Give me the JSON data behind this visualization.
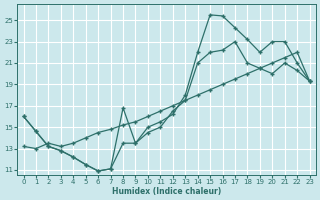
{
  "xlabel": "Humidex (Indice chaleur)",
  "bg_color": "#cce8ec",
  "grid_color": "#ffffff",
  "line_color": "#2e706a",
  "xlim": [
    -0.5,
    23.5
  ],
  "ylim": [
    10.5,
    26.5
  ],
  "xticks": [
    0,
    1,
    2,
    3,
    4,
    5,
    6,
    7,
    8,
    9,
    10,
    11,
    12,
    13,
    14,
    15,
    16,
    17,
    18,
    19,
    20,
    21,
    22,
    23
  ],
  "yticks": [
    11,
    13,
    15,
    17,
    19,
    21,
    23,
    25
  ],
  "curve_jagged_x": [
    0,
    1,
    2,
    3,
    4,
    5,
    6,
    7,
    8,
    9,
    10,
    11,
    12,
    13,
    14,
    15,
    16,
    17,
    18,
    19,
    20,
    21,
    22,
    23
  ],
  "curve_jagged_y": [
    16.0,
    14.6,
    13.2,
    12.8,
    12.2,
    11.5,
    10.9,
    11.1,
    16.8,
    13.5,
    14.5,
    15.0,
    16.5,
    17.5,
    21.0,
    22.0,
    22.2,
    23.0,
    21.0,
    20.5,
    20.0,
    21.0,
    20.3,
    19.3
  ],
  "curve_upper_x": [
    0,
    1,
    2,
    3,
    4,
    5,
    6,
    7,
    8,
    9,
    10,
    11,
    12,
    13,
    14,
    15,
    16,
    17,
    18,
    19,
    20,
    21,
    22,
    23
  ],
  "curve_upper_y": [
    16.0,
    14.6,
    13.2,
    12.8,
    12.2,
    11.5,
    10.9,
    11.1,
    13.5,
    13.5,
    15.0,
    15.5,
    16.2,
    18.0,
    22.0,
    25.5,
    25.4,
    24.3,
    23.2,
    22.0,
    23.0,
    23.0,
    21.0,
    19.3
  ],
  "curve_lower_x": [
    0,
    1,
    2,
    3,
    4,
    5,
    6,
    7,
    8,
    9,
    10,
    11,
    12,
    13,
    14,
    15,
    16,
    17,
    18,
    19,
    20,
    21,
    22,
    23
  ],
  "curve_lower_y": [
    13.2,
    13.0,
    13.5,
    13.2,
    13.5,
    14.0,
    14.5,
    14.8,
    15.2,
    15.5,
    16.0,
    16.5,
    17.0,
    17.5,
    18.0,
    18.5,
    19.0,
    19.5,
    20.0,
    20.5,
    21.0,
    21.5,
    22.0,
    19.3
  ]
}
